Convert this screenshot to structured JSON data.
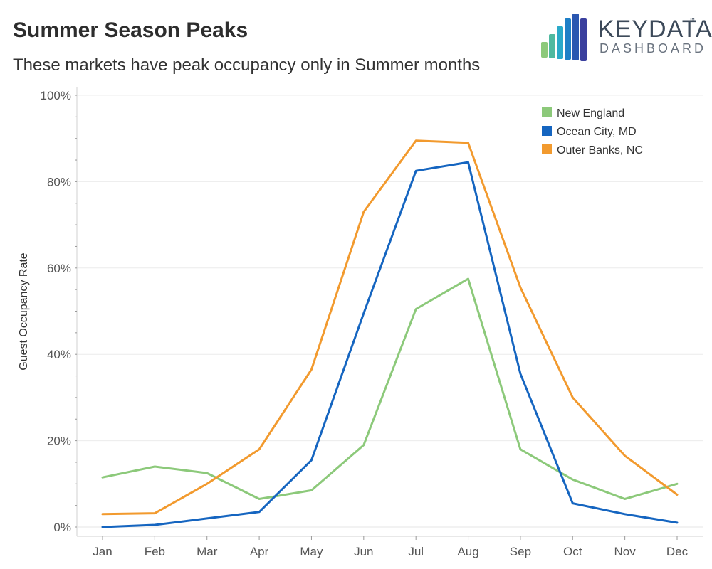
{
  "header": {
    "title": "Summer Season Peaks",
    "subtitle": "These markets have peak occupancy only in Summer months"
  },
  "logo": {
    "key_text": "KEYDATA",
    "tm": "™",
    "dashboard_text": "DASHBOARD",
    "bar_colors": [
      "#8cc97a",
      "#4fb9a0",
      "#2aa9c9",
      "#1e7fc7",
      "#2a57b0",
      "#3a3f9e"
    ]
  },
  "chart_data": {
    "type": "line",
    "title": "Summer Season Peaks",
    "subtitle": "These markets have peak occupancy only in Summer months",
    "xlabel": "",
    "ylabel": "Guest Occupancy Rate",
    "categories": [
      "Jan",
      "Feb",
      "Mar",
      "Apr",
      "May",
      "Jun",
      "Jul",
      "Aug",
      "Sep",
      "Oct",
      "Nov",
      "Dec"
    ],
    "ylim": [
      0,
      100
    ],
    "yticks": [
      0,
      20,
      40,
      60,
      80,
      100
    ],
    "ytick_labels": [
      "0%",
      "20%",
      "40%",
      "60%",
      "80%",
      "100%"
    ],
    "grid": true,
    "legend_position": "top-right",
    "series": [
      {
        "name": "New England",
        "color": "#8cc97a",
        "values": [
          11.5,
          14,
          12.5,
          6.5,
          8.5,
          19,
          50.5,
          57.5,
          18,
          11,
          6.5,
          10
        ]
      },
      {
        "name": "Ocean City, MD",
        "color": "#1565c0",
        "values": [
          0,
          0.5,
          2,
          3.5,
          15.5,
          49.5,
          82.5,
          84.5,
          35.5,
          5.5,
          3,
          1
        ]
      },
      {
        "name": "Outer Banks, NC",
        "color": "#f29a2e",
        "values": [
          3,
          3.2,
          10,
          18,
          36.5,
          73,
          89.5,
          89,
          55.5,
          30,
          16.5,
          7.5
        ]
      }
    ]
  }
}
